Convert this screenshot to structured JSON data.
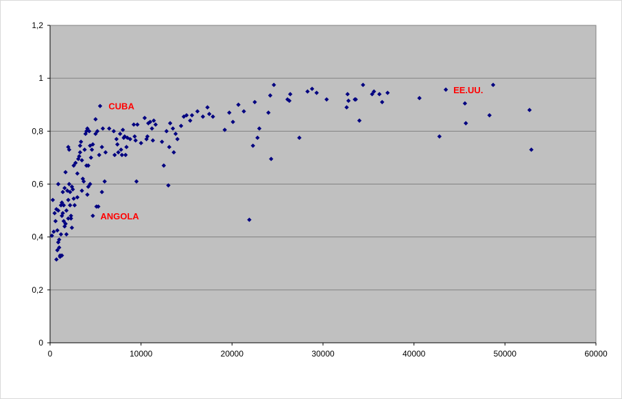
{
  "chart_data": {
    "type": "scatter",
    "title": "",
    "xlabel": "",
    "ylabel": "",
    "xlim": [
      0,
      60000
    ],
    "ylim": [
      0,
      1.2
    ],
    "grid": "horizontal",
    "legend": "none",
    "x_ticks": [
      "0",
      "10000",
      "20000",
      "30000",
      "40000",
      "50000",
      "60000"
    ],
    "x_tick_values": [
      0,
      10000,
      20000,
      30000,
      40000,
      50000,
      60000
    ],
    "y_ticks": [
      "0",
      "0,2",
      "0,4",
      "0,6",
      "0,8",
      "1",
      "1,2"
    ],
    "y_tick_values": [
      0,
      0.2,
      0.4,
      0.6,
      0.8,
      1.0,
      1.2
    ],
    "colors": {
      "plot_background": "#c0c0c0",
      "gridline": "#808080",
      "marker": "#000080",
      "annotation": "#ff0000"
    },
    "annotations": [
      {
        "text": "CUBA",
        "x": 5600,
        "y": 0.895
      },
      {
        "text": "ANGOLA",
        "x": 4700,
        "y": 0.48
      },
      {
        "text": "EE.UU.",
        "x": 43500,
        "y": 0.957
      }
    ],
    "series": [
      {
        "marker": "diamond",
        "points": [
          [
            200,
            0.405
          ],
          [
            300,
            0.54
          ],
          [
            400,
            0.42
          ],
          [
            500,
            0.49
          ],
          [
            600,
            0.46
          ],
          [
            700,
            0.505
          ],
          [
            700,
            0.315
          ],
          [
            800,
            0.35
          ],
          [
            800,
            0.425
          ],
          [
            900,
            0.38
          ],
          [
            900,
            0.5
          ],
          [
            900,
            0.6
          ],
          [
            1000,
            0.36
          ],
          [
            1000,
            0.39
          ],
          [
            1100,
            0.325
          ],
          [
            1100,
            0.33
          ],
          [
            1200,
            0.52
          ],
          [
            1200,
            0.41
          ],
          [
            1300,
            0.48
          ],
          [
            1300,
            0.53
          ],
          [
            1300,
            0.33
          ],
          [
            1400,
            0.49
          ],
          [
            1400,
            0.57
          ],
          [
            1500,
            0.46
          ],
          [
            1500,
            0.52
          ],
          [
            1600,
            0.44
          ],
          [
            1600,
            0.585
          ],
          [
            1700,
            0.45
          ],
          [
            1700,
            0.645
          ],
          [
            1800,
            0.41
          ],
          [
            1800,
            0.5
          ],
          [
            1900,
            0.575
          ],
          [
            2000,
            0.47
          ],
          [
            2000,
            0.54
          ],
          [
            2000,
            0.74
          ],
          [
            2100,
            0.6
          ],
          [
            2100,
            0.73
          ],
          [
            2200,
            0.57
          ],
          [
            2200,
            0.52
          ],
          [
            2300,
            0.48
          ],
          [
            2300,
            0.47
          ],
          [
            2400,
            0.435
          ],
          [
            2400,
            0.59
          ],
          [
            2500,
            0.58
          ],
          [
            2600,
            0.545
          ],
          [
            2600,
            0.67
          ],
          [
            2700,
            0.52
          ],
          [
            2800,
            0.68
          ],
          [
            3000,
            0.55
          ],
          [
            3000,
            0.64
          ],
          [
            3100,
            0.695
          ],
          [
            3200,
            0.705
          ],
          [
            3300,
            0.72
          ],
          [
            3300,
            0.745
          ],
          [
            3400,
            0.76
          ],
          [
            3500,
            0.69
          ],
          [
            3500,
            0.575
          ],
          [
            3600,
            0.62
          ],
          [
            3700,
            0.61
          ],
          [
            3800,
            0.73
          ],
          [
            3900,
            0.79
          ],
          [
            4000,
            0.67
          ],
          [
            4000,
            0.8
          ],
          [
            4100,
            0.81
          ],
          [
            4100,
            0.56
          ],
          [
            4200,
            0.67
          ],
          [
            4200,
            0.59
          ],
          [
            4300,
            0.8
          ],
          [
            4400,
            0.6
          ],
          [
            4400,
            0.745
          ],
          [
            4500,
            0.7
          ],
          [
            4600,
            0.73
          ],
          [
            4700,
            0.75
          ],
          [
            4700,
            0.48
          ],
          [
            5000,
            0.845
          ],
          [
            5000,
            0.79
          ],
          [
            5100,
            0.515
          ],
          [
            5200,
            0.8
          ],
          [
            5300,
            0.515
          ],
          [
            5400,
            0.71
          ],
          [
            5500,
            0.895
          ],
          [
            5700,
            0.57
          ],
          [
            5700,
            0.74
          ],
          [
            5800,
            0.81
          ],
          [
            6000,
            0.61
          ],
          [
            6100,
            0.72
          ],
          [
            6500,
            0.81
          ],
          [
            7000,
            0.8
          ],
          [
            7100,
            0.71
          ],
          [
            7300,
            0.77
          ],
          [
            7400,
            0.75
          ],
          [
            7500,
            0.72
          ],
          [
            7700,
            0.79
          ],
          [
            7800,
            0.73
          ],
          [
            7900,
            0.71
          ],
          [
            8000,
            0.805
          ],
          [
            8100,
            0.775
          ],
          [
            8200,
            0.78
          ],
          [
            8300,
            0.71
          ],
          [
            8400,
            0.74
          ],
          [
            8500,
            0.775
          ],
          [
            8800,
            0.77
          ],
          [
            9200,
            0.825
          ],
          [
            9300,
            0.78
          ],
          [
            9400,
            0.765
          ],
          [
            9500,
            0.61
          ],
          [
            9600,
            0.825
          ],
          [
            10000,
            0.755
          ],
          [
            10400,
            0.85
          ],
          [
            10600,
            0.77
          ],
          [
            10700,
            0.78
          ],
          [
            10800,
            0.83
          ],
          [
            11000,
            0.835
          ],
          [
            11200,
            0.81
          ],
          [
            11300,
            0.765
          ],
          [
            11400,
            0.84
          ],
          [
            11600,
            0.825
          ],
          [
            12300,
            0.76
          ],
          [
            12500,
            0.67
          ],
          [
            12800,
            0.8
          ],
          [
            13000,
            0.595
          ],
          [
            13100,
            0.74
          ],
          [
            13200,
            0.83
          ],
          [
            13500,
            0.81
          ],
          [
            13600,
            0.72
          ],
          [
            13800,
            0.79
          ],
          [
            14000,
            0.77
          ],
          [
            14400,
            0.82
          ],
          [
            14700,
            0.855
          ],
          [
            15000,
            0.86
          ],
          [
            15400,
            0.84
          ],
          [
            15600,
            0.86
          ],
          [
            16200,
            0.875
          ],
          [
            16800,
            0.855
          ],
          [
            17300,
            0.89
          ],
          [
            17500,
            0.865
          ],
          [
            17900,
            0.855
          ],
          [
            19200,
            0.805
          ],
          [
            19700,
            0.87
          ],
          [
            20100,
            0.835
          ],
          [
            20700,
            0.9
          ],
          [
            21300,
            0.875
          ],
          [
            21900,
            0.465
          ],
          [
            22300,
            0.745
          ],
          [
            22500,
            0.91
          ],
          [
            22800,
            0.775
          ],
          [
            23000,
            0.81
          ],
          [
            24000,
            0.87
          ],
          [
            24300,
            0.695
          ],
          [
            24600,
            0.975
          ],
          [
            24200,
            0.935
          ],
          [
            26100,
            0.92
          ],
          [
            26300,
            0.915
          ],
          [
            26400,
            0.94
          ],
          [
            27400,
            0.775
          ],
          [
            28300,
            0.95
          ],
          [
            28800,
            0.96
          ],
          [
            29300,
            0.945
          ],
          [
            30400,
            0.92
          ],
          [
            32600,
            0.89
          ],
          [
            32700,
            0.94
          ],
          [
            32800,
            0.915
          ],
          [
            33500,
            0.92
          ],
          [
            33600,
            0.92
          ],
          [
            34000,
            0.84
          ],
          [
            34400,
            0.975
          ],
          [
            35400,
            0.94
          ],
          [
            35600,
            0.95
          ],
          [
            36200,
            0.94
          ],
          [
            36500,
            0.91
          ],
          [
            37100,
            0.945
          ],
          [
            40600,
            0.925
          ],
          [
            42800,
            0.78
          ],
          [
            43500,
            0.957
          ],
          [
            45600,
            0.905
          ],
          [
            45700,
            0.83
          ],
          [
            48300,
            0.86
          ],
          [
            48700,
            0.975
          ],
          [
            52700,
            0.88
          ],
          [
            52900,
            0.73
          ]
        ]
      }
    ]
  }
}
